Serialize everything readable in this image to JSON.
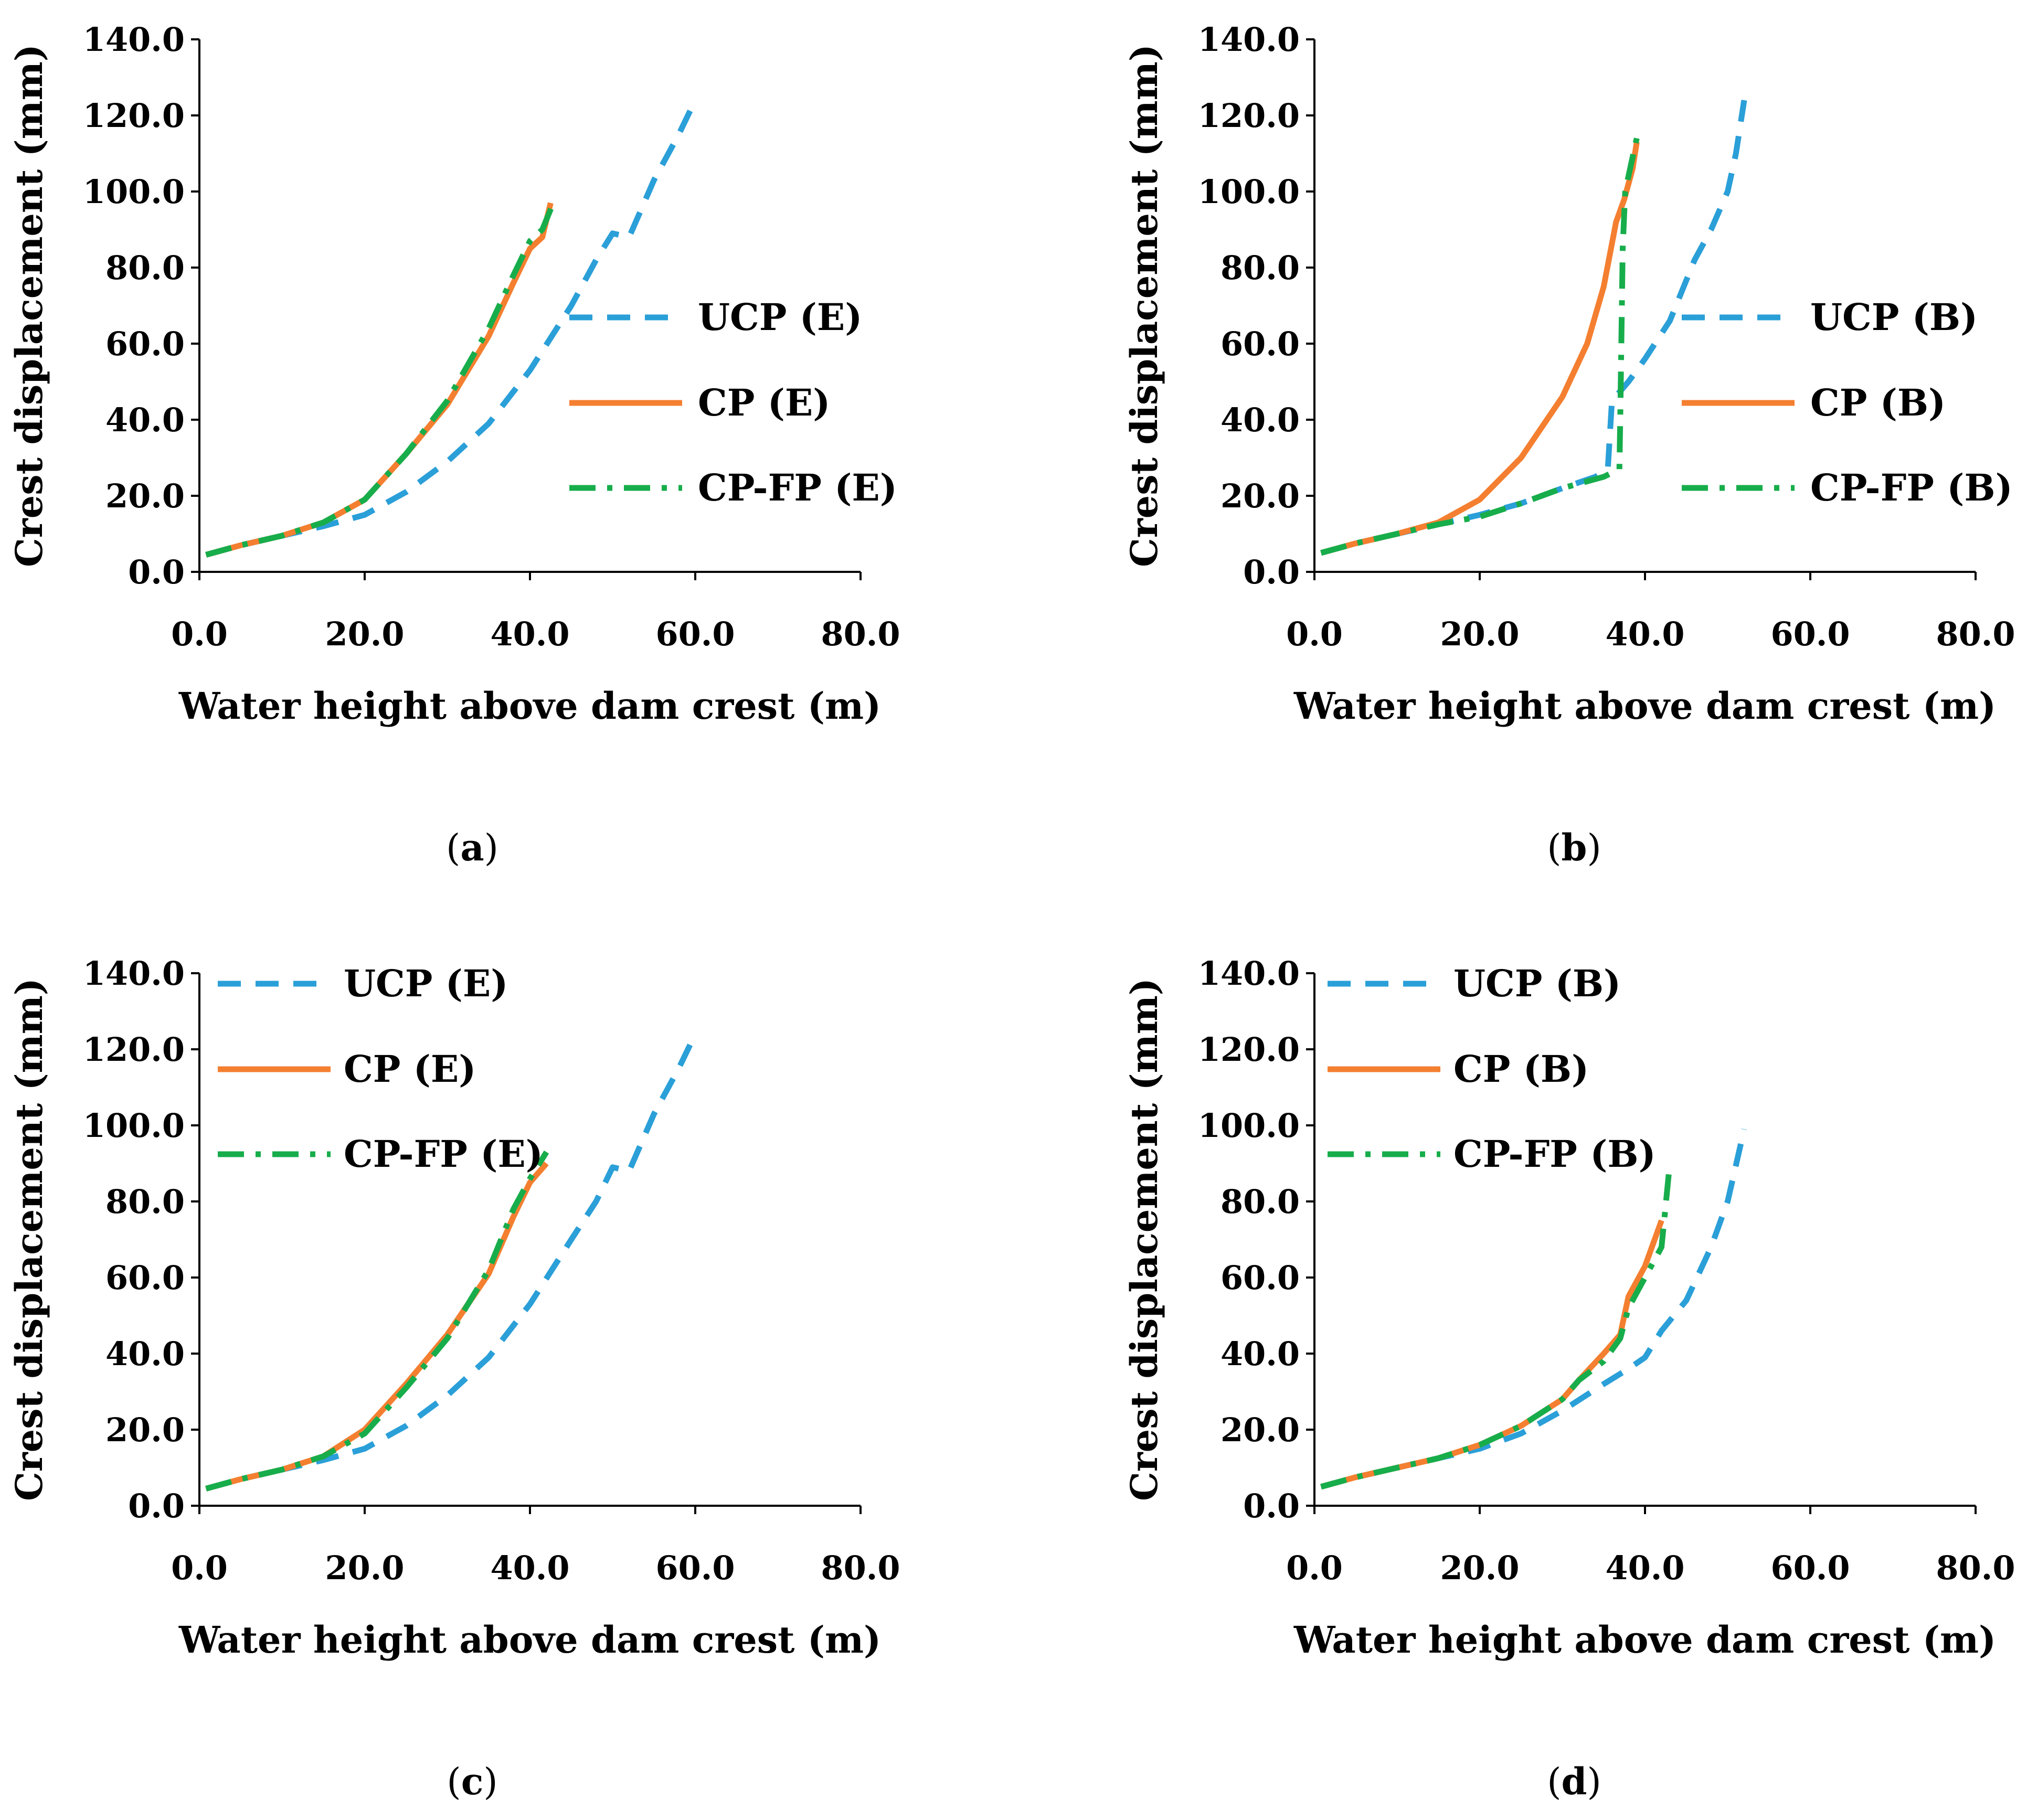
{
  "colors": {
    "ucp": "#2A9FD8",
    "cp": "#F47F30",
    "cpfp": "#17AD4B",
    "axis": "#000000"
  },
  "chart_data": [
    {
      "panel": "a",
      "type": "line",
      "caption": {
        "open": "(",
        "letter": "a",
        "close": ")"
      },
      "xlabel": "Water height above dam crest (m)",
      "ylabel": "Crest displacement (mm)",
      "xlim": [
        0,
        80
      ],
      "ylim": [
        0,
        140
      ],
      "xticks": [
        "0.0",
        "20.0",
        "40.0",
        "60.0",
        "80.0"
      ],
      "yticks": [
        "0.0",
        "20.0",
        "40.0",
        "60.0",
        "80.0",
        "100.0",
        "120.0",
        "140.0"
      ],
      "legend_position": "right-middle",
      "grid": false,
      "series": [
        {
          "name": "UCP (E)",
          "key": "ucp",
          "style": "dashed",
          "x": [
            0.8,
            5,
            10,
            15,
            20,
            25,
            30,
            35,
            40,
            45,
            48,
            50,
            52,
            55,
            58,
            60
          ],
          "y": [
            4.5,
            7,
            9.5,
            12,
            15,
            21,
            29,
            39,
            53,
            70,
            82,
            89,
            88,
            103,
            115,
            124
          ]
        },
        {
          "name": "CP (E)",
          "key": "cp",
          "style": "solid",
          "x": [
            0.8,
            5,
            10,
            15,
            20,
            25,
            30,
            35,
            38,
            40,
            41.5,
            42.5
          ],
          "y": [
            4.5,
            7,
            9.5,
            13,
            19,
            31,
            44,
            62,
            76,
            85,
            88,
            97
          ]
        },
        {
          "name": "CP-FP (E)",
          "key": "cpfp",
          "style": "dashdot",
          "x": [
            0.8,
            5,
            10,
            15,
            20,
            25,
            30,
            35,
            38,
            40,
            41.5,
            43
          ],
          "y": [
            4.5,
            7,
            9.5,
            13,
            19,
            31,
            45,
            64,
            78,
            87,
            90,
            98
          ]
        }
      ]
    },
    {
      "panel": "b",
      "type": "line",
      "caption": {
        "open": "(",
        "letter": "b",
        "close": ")"
      },
      "xlabel": "Water height above dam crest (m)",
      "ylabel": "Crest displacement (mm)",
      "xlim": [
        0,
        80
      ],
      "ylim": [
        0,
        140
      ],
      "xticks": [
        "0.0",
        "20.0",
        "40.0",
        "60.0",
        "80.0"
      ],
      "yticks": [
        "0.0",
        "20.0",
        "40.0",
        "60.0",
        "80.0",
        "100.0",
        "120.0",
        "140.0"
      ],
      "legend_position": "right-middle",
      "grid": false,
      "series": [
        {
          "name": "UCP (B)",
          "key": "ucp",
          "style": "dashed",
          "x": [
            0.8,
            5,
            10,
            15,
            20,
            25,
            30,
            34,
            35.5,
            36,
            38,
            40,
            43,
            46,
            48,
            50,
            51,
            52
          ],
          "y": [
            5,
            7.5,
            10,
            12.5,
            15,
            18,
            22,
            25,
            27,
            45,
            50,
            56,
            66,
            82,
            90,
            100,
            110,
            124
          ]
        },
        {
          "name": "CP (B)",
          "key": "cp",
          "style": "solid",
          "x": [
            0.8,
            5,
            10,
            15,
            20,
            25,
            30,
            33,
            35,
            36.5,
            37.5,
            38.5,
            39
          ],
          "y": [
            5,
            7.5,
            10,
            13,
            19,
            30,
            46,
            60,
            75,
            92,
            98,
            106,
            113
          ]
        },
        {
          "name": "CP-FP (B)",
          "key": "cpfp",
          "style": "dashdot",
          "x": [
            0.8,
            5,
            10,
            15,
            20,
            25,
            30,
            35,
            36.9,
            37,
            37.3,
            37.6,
            38.6,
            39
          ],
          "y": [
            5,
            7.5,
            10,
            12.5,
            14.5,
            18,
            22,
            25,
            27,
            40,
            85,
            100,
            110,
            114
          ]
        }
      ]
    },
    {
      "panel": "c",
      "type": "line",
      "caption": {
        "open": "(",
        "letter": "c",
        "close": ")"
      },
      "xlabel": "Water height above dam crest (m)",
      "ylabel": "Crest displacement (mm)",
      "xlim": [
        0,
        80
      ],
      "ylim": [
        0,
        140
      ],
      "xticks": [
        "0.0",
        "20.0",
        "40.0",
        "60.0",
        "80.0"
      ],
      "yticks": [
        "0.0",
        "20.0",
        "40.0",
        "60.0",
        "80.0",
        "100.0",
        "120.0",
        "140.0"
      ],
      "legend_position": "top-left",
      "grid": false,
      "series": [
        {
          "name": "UCP (E)",
          "key": "ucp",
          "style": "dashed",
          "x": [
            0.8,
            5,
            10,
            15,
            20,
            25,
            30,
            35,
            40,
            45,
            48,
            50,
            52,
            55,
            58,
            60
          ],
          "y": [
            4.5,
            7,
            9.5,
            12,
            15,
            21,
            29,
            39,
            53,
            70,
            80,
            89,
            88,
            103,
            115,
            124
          ]
        },
        {
          "name": "CP (E)",
          "key": "cp",
          "style": "solid",
          "x": [
            0.8,
            5,
            10,
            15,
            20,
            25,
            30,
            35,
            38,
            40,
            42
          ],
          "y": [
            4.5,
            7,
            9.5,
            13,
            20,
            32,
            45,
            61,
            76,
            85,
            90
          ]
        },
        {
          "name": "CP-FP (E)",
          "key": "cpfp",
          "style": "dashdot",
          "x": [
            0.8,
            5,
            10,
            15,
            20,
            25,
            30,
            35,
            38,
            40,
            42
          ],
          "y": [
            4.5,
            7,
            9.5,
            13,
            19,
            31,
            44,
            62,
            78,
            86,
            93
          ]
        }
      ]
    },
    {
      "panel": "d",
      "type": "line",
      "caption": {
        "open": "(",
        "letter": "d",
        "close": ")"
      },
      "xlabel": "Water height above dam crest (m)",
      "ylabel": "Crest displacement (mm)",
      "xlim": [
        0,
        80
      ],
      "ylim": [
        0,
        140
      ],
      "xticks": [
        "0.0",
        "20.0",
        "40.0",
        "60.0",
        "80.0"
      ],
      "yticks": [
        "0.0",
        "20.0",
        "40.0",
        "60.0",
        "80.0",
        "100.0",
        "120.0",
        "140.0"
      ],
      "legend_position": "top-left",
      "grid": false,
      "series": [
        {
          "name": "UCP (B)",
          "key": "ucp",
          "style": "dashed",
          "x": [
            0.8,
            5,
            10,
            15,
            20,
            25,
            30,
            35,
            38,
            40,
            42,
            45,
            48,
            50,
            52
          ],
          "y": [
            5,
            7.5,
            10,
            12.5,
            15,
            19,
            25,
            32,
            36,
            39,
            46,
            54,
            68,
            80,
            99
          ]
        },
        {
          "name": "CP (B)",
          "key": "cp",
          "style": "solid",
          "x": [
            0.8,
            5,
            10,
            15,
            20,
            25,
            30,
            32,
            35,
            37,
            38,
            40,
            42
          ],
          "y": [
            5,
            7.5,
            10,
            12.5,
            16,
            21,
            28,
            33,
            40,
            45,
            55,
            63,
            75
          ]
        },
        {
          "name": "CP-FP (B)",
          "key": "cpfp",
          "style": "dashdot",
          "x": [
            0.8,
            5,
            10,
            15,
            20,
            25,
            30,
            32,
            35,
            37,
            38,
            40,
            42,
            43
          ],
          "y": [
            5,
            7.5,
            10,
            12.5,
            16,
            21,
            28,
            33,
            38,
            44,
            52,
            60,
            68,
            90
          ]
        }
      ]
    }
  ]
}
